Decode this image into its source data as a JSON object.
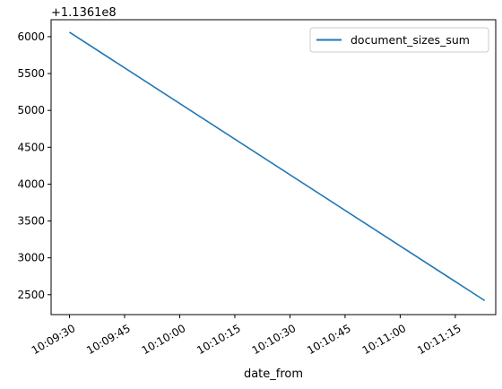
{
  "chart_data": {
    "type": "line",
    "xlabel": "date_from",
    "ylabel": "",
    "y_offset_label": "+1.1361e8",
    "x_unit": "time",
    "x_ticks": [
      "10:09:30",
      "10:09:45",
      "10:10:00",
      "10:10:15",
      "10:10:30",
      "10:10:45",
      "10:11:00",
      "10:11:15"
    ],
    "xlim": [
      "10:09:25",
      "10:11:26"
    ],
    "y_ticks": [
      2500,
      3000,
      3500,
      4000,
      4500,
      5000,
      5500,
      6000
    ],
    "ylim": [
      2230,
      6230
    ],
    "grid": false,
    "legend_position": "top-right",
    "series": [
      {
        "name": "document_sizes_sum",
        "color": "#1f77b4",
        "x": [
          "10:09:30",
          "10:11:23"
        ],
        "y": [
          6060,
          2420
        ]
      }
    ]
  }
}
